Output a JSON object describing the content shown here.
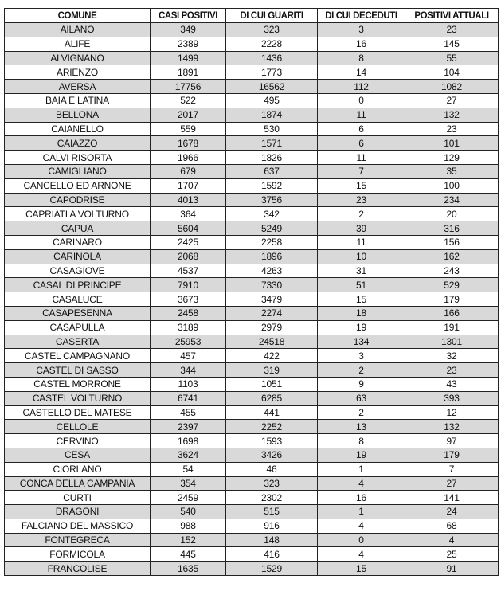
{
  "table": {
    "headers": [
      "COMUNE",
      "CASI POSITIVI",
      "DI CUI GUARITI",
      "DI CUI DECEDUTI",
      "POSITIVI ATTUALI"
    ],
    "row_shading": "#d9d9d9",
    "rows": [
      [
        "AILANO",
        "349",
        "323",
        "3",
        "23"
      ],
      [
        "ALIFE",
        "2389",
        "2228",
        "16",
        "145"
      ],
      [
        "ALVIGNANO",
        "1499",
        "1436",
        "8",
        "55"
      ],
      [
        "ARIENZO",
        "1891",
        "1773",
        "14",
        "104"
      ],
      [
        "AVERSA",
        "17756",
        "16562",
        "112",
        "1082"
      ],
      [
        "BAIA E LATINA",
        "522",
        "495",
        "0",
        "27"
      ],
      [
        "BELLONA",
        "2017",
        "1874",
        "11",
        "132"
      ],
      [
        "CAIANELLO",
        "559",
        "530",
        "6",
        "23"
      ],
      [
        "CAIAZZO",
        "1678",
        "1571",
        "6",
        "101"
      ],
      [
        "CALVI RISORTA",
        "1966",
        "1826",
        "11",
        "129"
      ],
      [
        "CAMIGLIANO",
        "679",
        "637",
        "7",
        "35"
      ],
      [
        "CANCELLO ED ARNONE",
        "1707",
        "1592",
        "15",
        "100"
      ],
      [
        "CAPODRISE",
        "4013",
        "3756",
        "23",
        "234"
      ],
      [
        "CAPRIATI A VOLTURNO",
        "364",
        "342",
        "2",
        "20"
      ],
      [
        "CAPUA",
        "5604",
        "5249",
        "39",
        "316"
      ],
      [
        "CARINARO",
        "2425",
        "2258",
        "11",
        "156"
      ],
      [
        "CARINOLA",
        "2068",
        "1896",
        "10",
        "162"
      ],
      [
        "CASAGIOVE",
        "4537",
        "4263",
        "31",
        "243"
      ],
      [
        "CASAL DI PRINCIPE",
        "7910",
        "7330",
        "51",
        "529"
      ],
      [
        "CASALUCE",
        "3673",
        "3479",
        "15",
        "179"
      ],
      [
        "CASAPESENNA",
        "2458",
        "2274",
        "18",
        "166"
      ],
      [
        "CASAPULLA",
        "3189",
        "2979",
        "19",
        "191"
      ],
      [
        "CASERTA",
        "25953",
        "24518",
        "134",
        "1301"
      ],
      [
        "CASTEL CAMPAGNANO",
        "457",
        "422",
        "3",
        "32"
      ],
      [
        "CASTEL DI SASSO",
        "344",
        "319",
        "2",
        "23"
      ],
      [
        "CASTEL MORRONE",
        "1103",
        "1051",
        "9",
        "43"
      ],
      [
        "CASTEL VOLTURNO",
        "6741",
        "6285",
        "63",
        "393"
      ],
      [
        "CASTELLO DEL MATESE",
        "455",
        "441",
        "2",
        "12"
      ],
      [
        "CELLOLE",
        "2397",
        "2252",
        "13",
        "132"
      ],
      [
        "CERVINO",
        "1698",
        "1593",
        "8",
        "97"
      ],
      [
        "CESA",
        "3624",
        "3426",
        "19",
        "179"
      ],
      [
        "CIORLANO",
        "54",
        "46",
        "1",
        "7"
      ],
      [
        "CONCA DELLA CAMPANIA",
        "354",
        "323",
        "4",
        "27"
      ],
      [
        "CURTI",
        "2459",
        "2302",
        "16",
        "141"
      ],
      [
        "DRAGONI",
        "540",
        "515",
        "1",
        "24"
      ],
      [
        "FALCIANO DEL MASSICO",
        "988",
        "916",
        "4",
        "68"
      ],
      [
        "FONTEGRECA",
        "152",
        "148",
        "0",
        "4"
      ],
      [
        "FORMICOLA",
        "445",
        "416",
        "4",
        "25"
      ],
      [
        "FRANCOLISE",
        "1635",
        "1529",
        "15",
        "91"
      ]
    ]
  }
}
